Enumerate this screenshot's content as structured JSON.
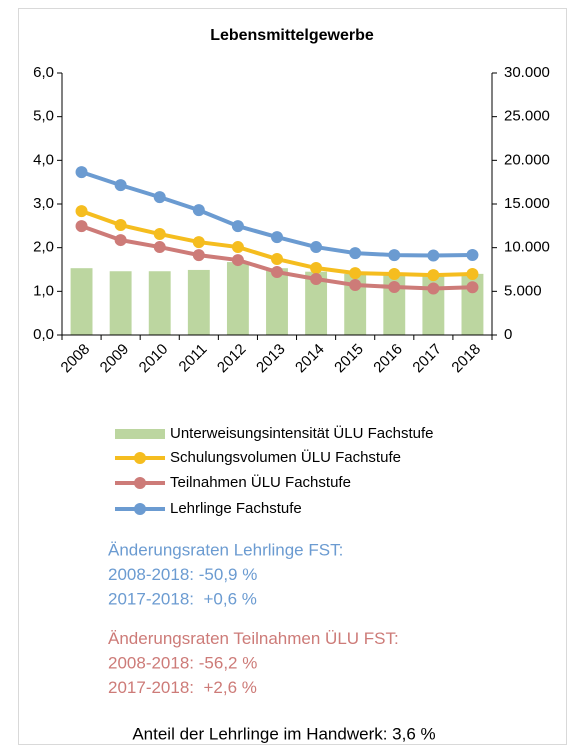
{
  "chart_data": {
    "type": "bar-line",
    "title": "Lebensmittelgewerbe",
    "categories": [
      "2008",
      "2009",
      "2010",
      "2011",
      "2012",
      "2013",
      "2014",
      "2015",
      "2016",
      "2017",
      "2018"
    ],
    "ylim": [
      0,
      6
    ],
    "yticks": [
      {
        "value": 0,
        "label": "0,0"
      },
      {
        "value": 1,
        "label": "1,0"
      },
      {
        "value": 2,
        "label": "2,0"
      },
      {
        "value": 3,
        "label": "3,0"
      },
      {
        "value": 4,
        "label": "4,0"
      },
      {
        "value": 5,
        "label": "5,0"
      },
      {
        "value": 6,
        "label": "6,0"
      }
    ],
    "y2lim": [
      0,
      30000
    ],
    "y2ticks": [
      0,
      {
        "value": 5000,
        "label": "5.000"
      },
      {
        "value": 10000,
        "label": "10.000"
      },
      {
        "value": 15000,
        "label": "15.000"
      },
      {
        "value": 20000,
        "label": "20.000"
      },
      {
        "value": 25000,
        "label": "25.000"
      },
      {
        "value": 30000,
        "label": "30.000"
      }
    ],
    "series": [
      {
        "name": "Unterweisungsintensität ÜLU Fachstufe",
        "type": "bar",
        "color": "#bcd6a0",
        "values": [
          1.53,
          1.46,
          1.46,
          1.49,
          1.67,
          1.53,
          1.45,
          1.4,
          1.4,
          1.4,
          1.4
        ]
      },
      {
        "name": "Schulungsvolumen ÜLU Fachstufe",
        "type": "line",
        "axis": "y2",
        "color": "#f5bd1f",
        "values": [
          14190,
          12590,
          11560,
          10640,
          10070,
          8700,
          7670,
          7090,
          6980,
          6860,
          6980
        ]
      },
      {
        "name": "Teilnahmen ÜLU Fachstufe",
        "type": "line",
        "axis": "y2",
        "color": "#cd7b78",
        "values": [
          12470,
          10870,
          10070,
          9150,
          8580,
          7210,
          6410,
          5720,
          5500,
          5330,
          5470
        ]
      },
      {
        "name": "Lehrlinge Fachstufe",
        "type": "line",
        "axis": "y2",
        "color": "#6b9bd1",
        "values": [
          18650,
          17160,
          15790,
          14300,
          12470,
          11210,
          10070,
          9380,
          9150,
          9100,
          9160
        ]
      }
    ],
    "annotations": [
      {
        "color": "#6b9bd1",
        "lines": [
          "Änderungsraten Lehrlinge FST:",
          "2008-2018: -50,9 %",
          "2017-2018:  +0,6 %"
        ]
      },
      {
        "color": "#cd7b78",
        "lines": [
          "Änderungsraten Teilnahmen ÜLU FST:",
          "2008-2018: -56,2 %",
          "2017-2018:  +2,6 %"
        ]
      }
    ],
    "footnote": "Anteil der Lehrlinge im Handwerk: 3,6 %"
  }
}
